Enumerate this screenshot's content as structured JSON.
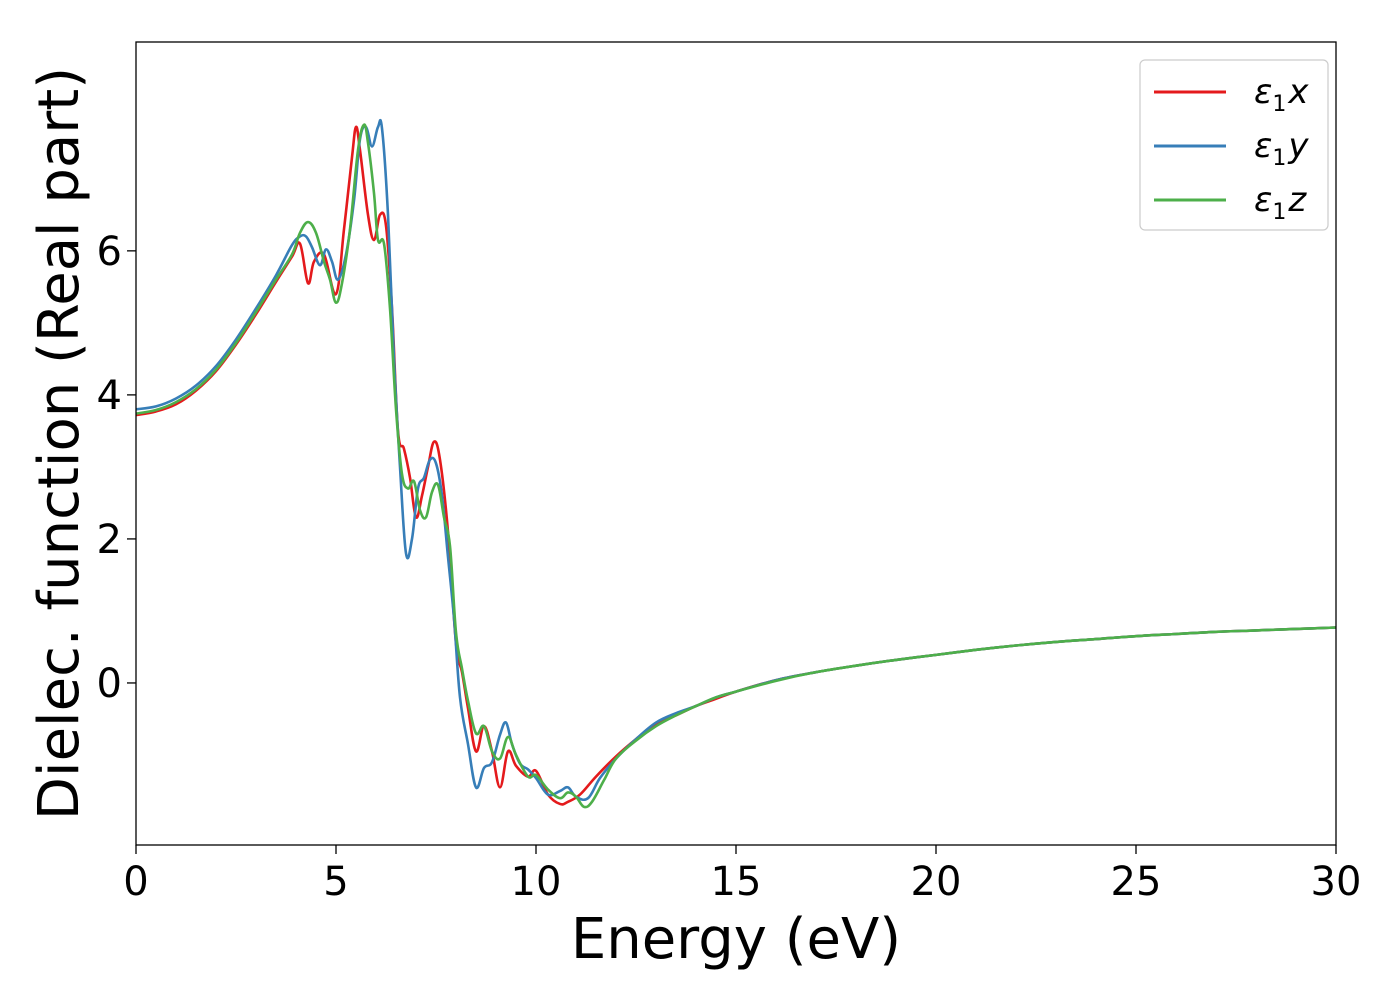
{
  "chart_data": {
    "type": "line",
    "title": "",
    "xlabel": "Energy (eV)",
    "ylabel": "Dielec. function (Real part)",
    "xlim": [
      0,
      30
    ],
    "ylim": [
      -2.25,
      8.9
    ],
    "xticks": [
      0,
      5,
      10,
      15,
      20,
      25,
      30
    ],
    "yticks": [
      0,
      2,
      4,
      6
    ],
    "xtick_labels": [
      "0",
      "5",
      "10",
      "15",
      "20",
      "25",
      "30"
    ],
    "ytick_labels": [
      "0",
      "2",
      "4",
      "6"
    ],
    "grid": false,
    "legend_position": "top-right",
    "series": [
      {
        "name": "ε1x",
        "name_base": "ε",
        "name_sub": "1",
        "name_var": "x",
        "color": "#e41a1c",
        "x": [
          0,
          0.5,
          1,
          1.5,
          2,
          2.5,
          3,
          3.5,
          3.9,
          4.1,
          4.3,
          4.45,
          4.7,
          5.0,
          5.2,
          5.4,
          5.5,
          5.6,
          5.8,
          5.95,
          6.1,
          6.25,
          6.4,
          6.55,
          6.7,
          6.85,
          7.0,
          7.15,
          7.3,
          7.45,
          7.6,
          7.8,
          8.0,
          8.15,
          8.3,
          8.5,
          8.7,
          8.9,
          9.1,
          9.3,
          9.5,
          9.8,
          10.0,
          10.3,
          10.6,
          10.8,
          11.1,
          11.5,
          12.0,
          12.5,
          13,
          13.5,
          14,
          14.5,
          15,
          16,
          17,
          18,
          19,
          20,
          21,
          22,
          23,
          24,
          25,
          26,
          27,
          28,
          29,
          30
        ],
        "y": [
          3.72,
          3.77,
          3.87,
          4.06,
          4.33,
          4.7,
          5.12,
          5.57,
          5.92,
          6.1,
          5.55,
          5.85,
          5.95,
          5.4,
          6.3,
          7.3,
          7.72,
          7.4,
          6.5,
          6.15,
          6.5,
          6.35,
          5.2,
          3.5,
          3.25,
          2.85,
          2.3,
          2.6,
          3.0,
          3.35,
          3.1,
          2.1,
          0.55,
          0.15,
          -0.35,
          -0.95,
          -0.6,
          -0.95,
          -1.45,
          -0.95,
          -1.15,
          -1.3,
          -1.22,
          -1.55,
          -1.68,
          -1.65,
          -1.55,
          -1.3,
          -1.02,
          -0.78,
          -0.57,
          -0.45,
          -0.32,
          -0.22,
          -0.12,
          0.04,
          0.15,
          0.24,
          0.32,
          0.39,
          0.46,
          0.52,
          0.57,
          0.61,
          0.65,
          0.68,
          0.71,
          0.73,
          0.75,
          0.77
        ]
      },
      {
        "name": "ε1y",
        "name_base": "ε",
        "name_sub": "1",
        "name_var": "y",
        "color": "#377eb8",
        "x": [
          0,
          0.5,
          1,
          1.5,
          2,
          2.5,
          3,
          3.5,
          3.9,
          4.1,
          4.25,
          4.4,
          4.6,
          4.75,
          4.9,
          5.05,
          5.25,
          5.45,
          5.6,
          5.75,
          5.9,
          6.05,
          6.15,
          6.3,
          6.45,
          6.6,
          6.75,
          6.9,
          7.05,
          7.2,
          7.35,
          7.5,
          7.65,
          7.8,
          7.95,
          8.1,
          8.3,
          8.5,
          8.7,
          8.9,
          9.1,
          9.25,
          9.4,
          9.6,
          9.8,
          10.0,
          10.3,
          10.6,
          10.8,
          11.0,
          11.3,
          11.6,
          12.0,
          12.5,
          13,
          13.5,
          14,
          14.5,
          15,
          16,
          17,
          18,
          19,
          20,
          21,
          22,
          23,
          24,
          25,
          26,
          27,
          28,
          29,
          30
        ],
        "y": [
          3.8,
          3.84,
          3.95,
          4.13,
          4.4,
          4.77,
          5.2,
          5.66,
          6.08,
          6.2,
          6.2,
          6.05,
          5.8,
          6.02,
          5.85,
          5.6,
          5.95,
          6.7,
          7.55,
          7.72,
          7.45,
          7.72,
          7.7,
          6.5,
          4.5,
          3.0,
          1.8,
          2.0,
          2.7,
          2.85,
          3.1,
          3.05,
          2.6,
          1.75,
          0.9,
          -0.2,
          -0.85,
          -1.45,
          -1.18,
          -1.1,
          -0.72,
          -0.55,
          -0.85,
          -1.12,
          -1.2,
          -1.32,
          -1.55,
          -1.5,
          -1.45,
          -1.58,
          -1.6,
          -1.32,
          -1.05,
          -0.78,
          -0.55,
          -0.42,
          -0.32,
          -0.2,
          -0.12,
          0.04,
          0.15,
          0.24,
          0.32,
          0.39,
          0.46,
          0.52,
          0.57,
          0.61,
          0.65,
          0.68,
          0.71,
          0.73,
          0.75,
          0.77
        ]
      },
      {
        "name": "ε1z",
        "name_base": "ε",
        "name_sub": "1",
        "name_var": "z",
        "color": "#4daf4a",
        "x": [
          0,
          0.5,
          1,
          1.5,
          2,
          2.5,
          3,
          3.5,
          3.9,
          4.1,
          4.3,
          4.5,
          4.7,
          4.85,
          5.0,
          5.15,
          5.35,
          5.55,
          5.7,
          5.8,
          5.95,
          6.05,
          6.2,
          6.35,
          6.5,
          6.65,
          6.8,
          6.95,
          7.1,
          7.25,
          7.4,
          7.55,
          7.7,
          7.85,
          8.0,
          8.15,
          8.3,
          8.5,
          8.7,
          8.9,
          9.1,
          9.3,
          9.5,
          9.8,
          10.0,
          10.3,
          10.6,
          10.8,
          11.0,
          11.2,
          11.4,
          11.7,
          12.0,
          12.5,
          13,
          13.5,
          14,
          14.5,
          15,
          16,
          17,
          18,
          19,
          20,
          21,
          22,
          23,
          24,
          25,
          26,
          27,
          28,
          29,
          30
        ],
        "y": [
          3.74,
          3.79,
          3.9,
          4.08,
          4.35,
          4.72,
          5.15,
          5.6,
          5.95,
          6.25,
          6.4,
          6.25,
          5.85,
          5.6,
          5.28,
          5.55,
          6.3,
          7.4,
          7.75,
          7.5,
          6.8,
          6.15,
          6.1,
          5.2,
          3.8,
          2.9,
          2.7,
          2.8,
          2.4,
          2.3,
          2.65,
          2.75,
          2.3,
          1.9,
          0.7,
          0.2,
          -0.25,
          -0.7,
          -0.6,
          -0.95,
          -1.05,
          -0.75,
          -1.0,
          -1.3,
          -1.28,
          -1.48,
          -1.6,
          -1.52,
          -1.58,
          -1.72,
          -1.65,
          -1.35,
          -1.05,
          -0.8,
          -0.6,
          -0.45,
          -0.32,
          -0.2,
          -0.12,
          0.03,
          0.15,
          0.24,
          0.32,
          0.39,
          0.46,
          0.52,
          0.57,
          0.61,
          0.65,
          0.68,
          0.71,
          0.73,
          0.75,
          0.77
        ]
      }
    ]
  }
}
